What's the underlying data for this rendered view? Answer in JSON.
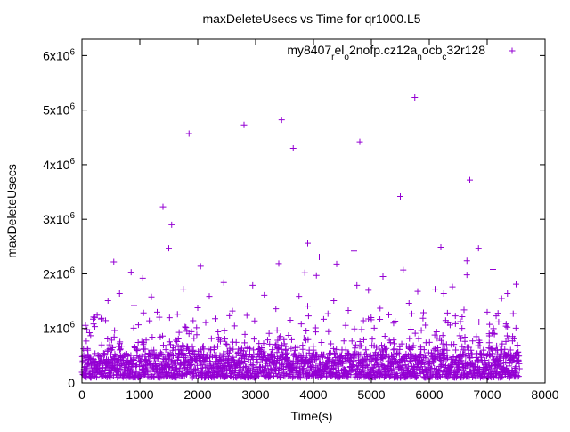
{
  "chart_data": {
    "type": "scatter",
    "title": "maxDeleteUsecs vs Time for qr1000.L5",
    "xlabel": "Time(s)",
    "ylabel": "maxDeleteUsecs",
    "xlim": [
      0,
      8000
    ],
    "ylim": [
      0,
      6300000
    ],
    "grid": false,
    "legend_position": "top-right",
    "x_ticks": [
      {
        "value": 0,
        "label": "0"
      },
      {
        "value": 1000,
        "label": "1000"
      },
      {
        "value": 2000,
        "label": "2000"
      },
      {
        "value": 3000,
        "label": "3000"
      },
      {
        "value": 4000,
        "label": "4000"
      },
      {
        "value": 5000,
        "label": "5000"
      },
      {
        "value": 6000,
        "label": "6000"
      },
      {
        "value": 7000,
        "label": "7000"
      },
      {
        "value": 8000,
        "label": "8000"
      }
    ],
    "y_ticks": [
      {
        "value": 0,
        "label": "0",
        "exp": ""
      },
      {
        "value": 1000000,
        "label": "1x10",
        "exp": "6"
      },
      {
        "value": 2000000,
        "label": "2x10",
        "exp": "6"
      },
      {
        "value": 3000000,
        "label": "3x10",
        "exp": "6"
      },
      {
        "value": 4000000,
        "label": "4x10",
        "exp": "6"
      },
      {
        "value": 5000000,
        "label": "5x10",
        "exp": "6"
      },
      {
        "value": 6000000,
        "label": "6x10",
        "exp": "6"
      }
    ],
    "series": [
      {
        "name_parts": [
          {
            "text": "my8407",
            "sub": false
          },
          {
            "text": "r",
            "sub": true
          },
          {
            "text": "el",
            "sub": false
          },
          {
            "text": "o",
            "sub": true
          },
          {
            "text": "2nofp.cz12a",
            "sub": false
          },
          {
            "text": "n",
            "sub": true
          },
          {
            "text": "ocb",
            "sub": false
          },
          {
            "text": "c",
            "sub": true
          },
          {
            "text": "32r128",
            "sub": false
          }
        ],
        "color": "#9400d3",
        "marker": "plus",
        "x_range": [
          0,
          7560
        ],
        "baseline_band": [
          100000,
          550000
        ],
        "outliers": [
          [
            1400,
            3230000
          ],
          [
            1550,
            2900000
          ],
          [
            1850,
            4570000
          ],
          [
            2800,
            4730000
          ],
          [
            3450,
            4820000
          ],
          [
            3650,
            4300000
          ],
          [
            4800,
            4420000
          ],
          [
            5750,
            5230000
          ],
          [
            6700,
            3720000
          ],
          [
            5500,
            3420000
          ],
          [
            1500,
            2470000
          ],
          [
            3900,
            2560000
          ],
          [
            4100,
            2310000
          ],
          [
            6200,
            2490000
          ],
          [
            6850,
            2470000
          ],
          [
            550,
            2220000
          ],
          [
            850,
            2030000
          ],
          [
            2050,
            2140000
          ],
          [
            3400,
            2190000
          ],
          [
            4400,
            2180000
          ],
          [
            4700,
            2420000
          ],
          [
            6650,
            2240000
          ],
          [
            7100,
            2080000
          ],
          [
            5550,
            2070000
          ],
          [
            1050,
            1920000
          ],
          [
            1750,
            1720000
          ],
          [
            2450,
            1840000
          ],
          [
            2950,
            1790000
          ],
          [
            3850,
            2020000
          ],
          [
            4050,
            1970000
          ],
          [
            4750,
            1790000
          ],
          [
            5200,
            1950000
          ],
          [
            6650,
            1980000
          ],
          [
            6400,
            1760000
          ],
          [
            7500,
            1810000
          ],
          [
            7350,
            1640000
          ],
          [
            5800,
            1680000
          ],
          [
            6100,
            1720000
          ],
          [
            4950,
            1700000
          ],
          [
            3150,
            1610000
          ],
          [
            450,
            1510000
          ],
          [
            650,
            1640000
          ],
          [
            1200,
            1580000
          ],
          [
            2200,
            1590000
          ],
          [
            3750,
            1590000
          ],
          [
            4350,
            1510000
          ],
          [
            5650,
            1460000
          ],
          [
            7250,
            1550000
          ],
          [
            6250,
            1640000
          ],
          [
            900,
            1420000
          ],
          [
            1300,
            1300000
          ],
          [
            2000,
            1380000
          ],
          [
            2600,
            1320000
          ],
          [
            3350,
            1360000
          ],
          [
            3900,
            1410000
          ],
          [
            4600,
            1330000
          ],
          [
            5150,
            1370000
          ],
          [
            5900,
            1290000
          ],
          [
            6600,
            1340000
          ],
          [
            7000,
            1300000
          ],
          [
            7450,
            1270000
          ],
          [
            200,
            1210000
          ],
          [
            1650,
            1260000
          ],
          [
            2850,
            1240000
          ],
          [
            4250,
            1270000
          ],
          [
            6450,
            1230000
          ],
          [
            5300,
            1250000
          ],
          [
            2300,
            1180000
          ],
          [
            3600,
            1150000
          ],
          [
            5000,
            1160000
          ]
        ]
      }
    ]
  }
}
